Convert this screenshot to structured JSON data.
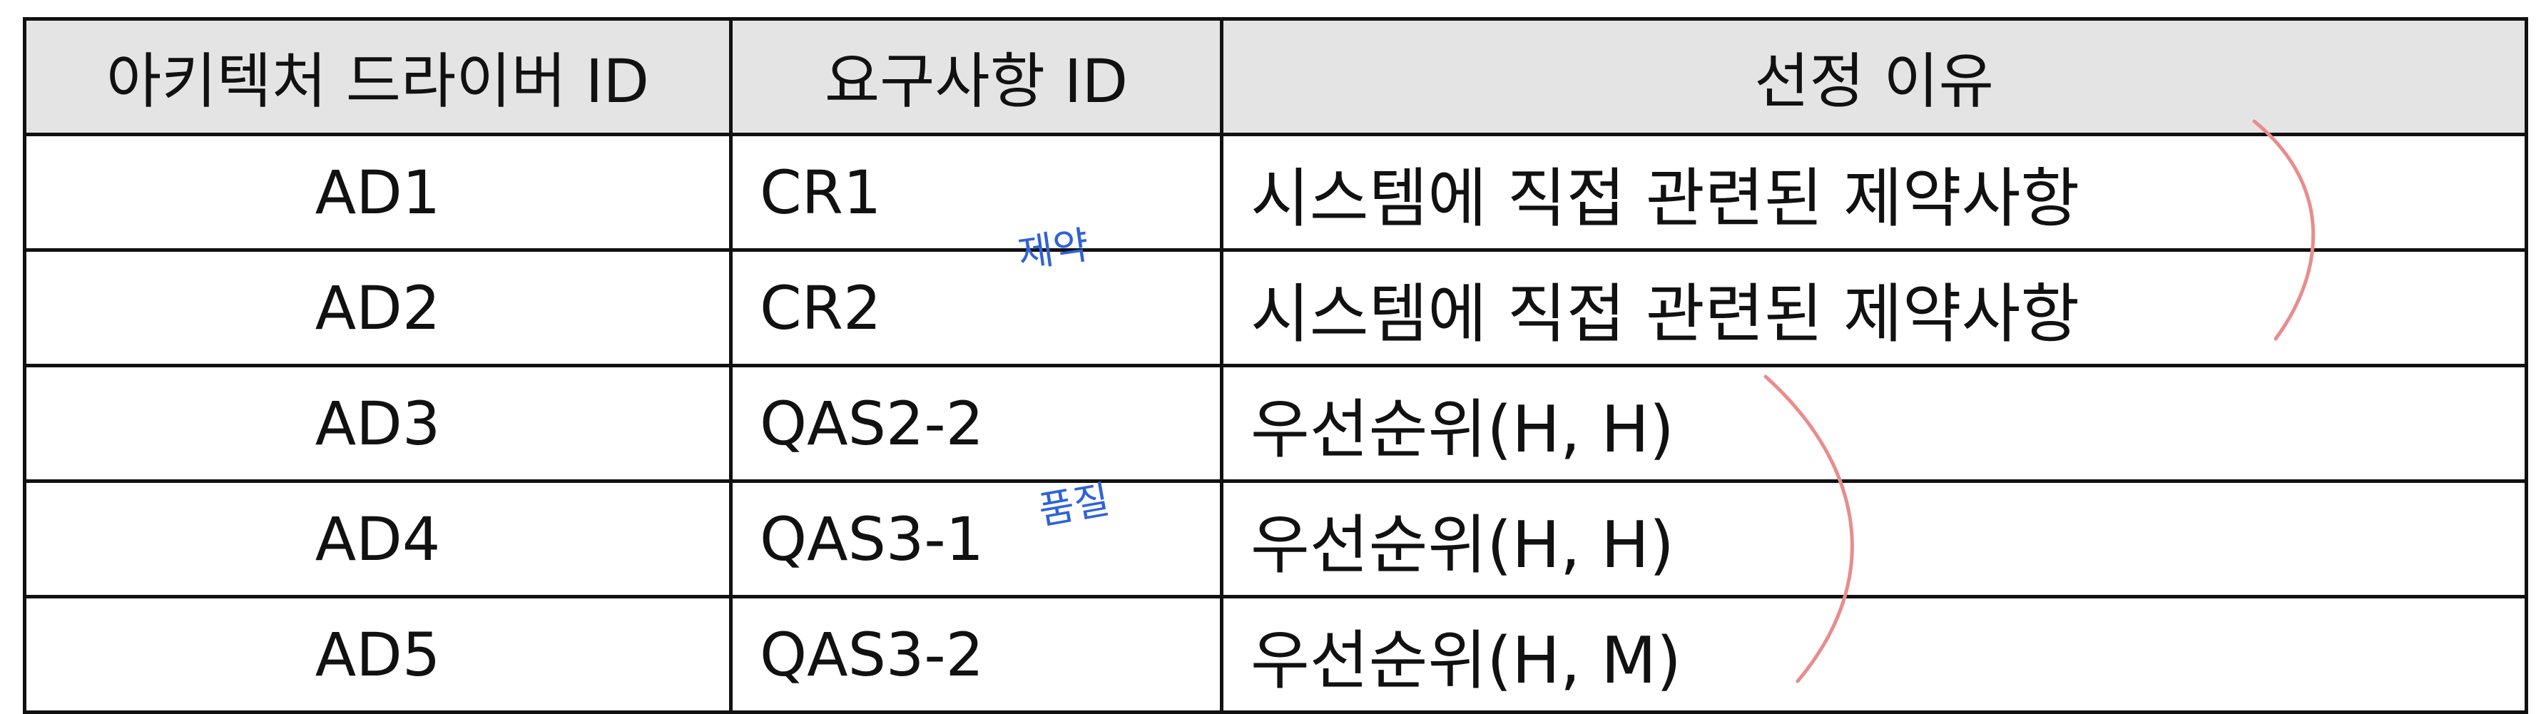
{
  "table": {
    "headers": [
      "아키텍처 드라이버 ID",
      "요구사항 ID",
      "선정 이유"
    ],
    "rows": [
      {
        "driver_id": "AD1",
        "requirement_id": "CR1",
        "reason": "시스템에 직접 관련된 제약사항"
      },
      {
        "driver_id": "AD2",
        "requirement_id": "CR2",
        "reason": "시스템에 직접 관련된 제약사항"
      },
      {
        "driver_id": "AD3",
        "requirement_id": "QAS2-2",
        "reason": "우선순위(H, H)"
      },
      {
        "driver_id": "AD4",
        "requirement_id": "QAS3-1",
        "reason": "우선순위(H, H)"
      },
      {
        "driver_id": "AD5",
        "requirement_id": "QAS3-2",
        "reason": "우선순위(H, M)"
      }
    ]
  },
  "annotations": {
    "note_constraint": "제약",
    "note_quality": "품질",
    "note_color": "#2f62d8",
    "bracket_color": "#e98c8c"
  }
}
